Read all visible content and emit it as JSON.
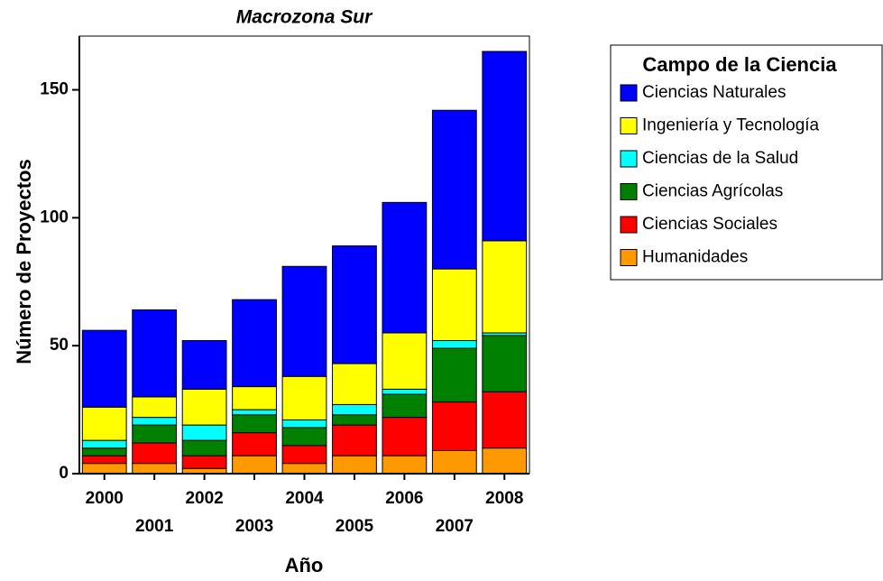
{
  "chart_data": {
    "type": "stacked_bar",
    "title": "Macrozona Sur",
    "x_label": "Año",
    "y_label": "Número de Proyectos",
    "categories": [
      "2000",
      "2001",
      "2002",
      "2003",
      "2004",
      "2005",
      "2006",
      "2007",
      "2008"
    ],
    "legend_title": "Campo de la Ciencia",
    "legend_position": "right",
    "series": [
      {
        "name": "Ciencias Naturales",
        "color": "#0000ff",
        "values": [
          30,
          34,
          19,
          34,
          43,
          46,
          51,
          62,
          74
        ]
      },
      {
        "name": "Ingeniería y Tecnología",
        "color": "#ffff00",
        "values": [
          13,
          8,
          14,
          9,
          17,
          16,
          22,
          28,
          36
        ]
      },
      {
        "name": "Ciencias de la Salud",
        "color": "#00ffff",
        "values": [
          3,
          3,
          6,
          2,
          3,
          4,
          2,
          3,
          1
        ]
      },
      {
        "name": "Ciencias Agrícolas",
        "color": "#008000",
        "values": [
          3,
          7,
          6,
          7,
          7,
          4,
          9,
          21,
          22
        ]
      },
      {
        "name": "Ciencias Sociales",
        "color": "#ff0000",
        "values": [
          3,
          8,
          5,
          9,
          7,
          12,
          15,
          19,
          22
        ]
      },
      {
        "name": "Humanidades",
        "color": "#ff9900",
        "values": [
          4,
          4,
          2,
          7,
          4,
          7,
          7,
          9,
          10
        ]
      }
    ],
    "ylim": [
      0,
      171
    ],
    "yticks": [
      0,
      50,
      100,
      150
    ]
  }
}
